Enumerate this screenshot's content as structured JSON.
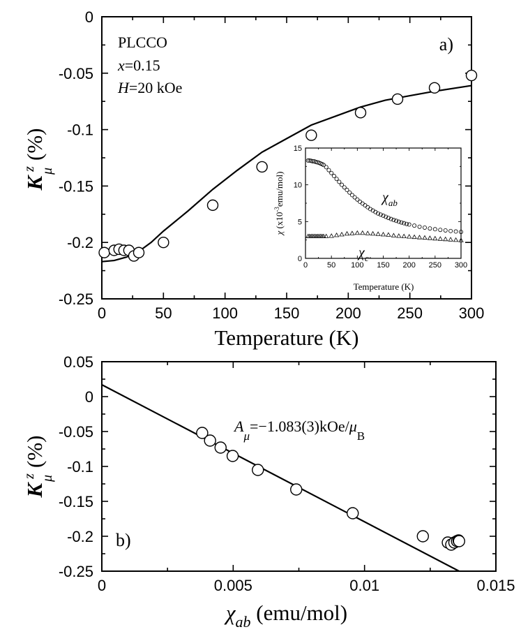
{
  "chart_data": [
    {
      "type": "scatter",
      "panel_label": "a)",
      "xlabel": "Temperature (K)",
      "ylabel": {
        "main": "K",
        "sup": "z",
        "sub": "μ",
        "unit": "(%)"
      },
      "xlim": [
        0,
        300
      ],
      "ylim": [
        -0.25,
        0
      ],
      "xticks": [
        0,
        50,
        100,
        150,
        200,
        250,
        300
      ],
      "yticks": [
        0,
        -0.05,
        -0.1,
        -0.15,
        -0.2,
        -0.25
      ],
      "xtick_labels": [
        "0",
        "50",
        "100",
        "150",
        "200",
        "250",
        "300"
      ],
      "ytick_labels": [
        "0",
        "-0.05",
        "-0.1",
        "-0.15",
        "-0.2",
        "-0.25"
      ],
      "annotation": {
        "line1": "PLCCO",
        "line2_var": "x",
        "line2_val": "=0.15",
        "line3_var": "H",
        "line3_val": "=20 kOe"
      },
      "series": [
        {
          "kind": "points",
          "x": [
            2,
            10,
            14,
            18,
            22,
            26,
            30,
            50,
            90,
            130,
            170,
            210,
            240,
            270,
            300
          ],
          "y": [
            -0.209,
            -0.207,
            -0.206,
            -0.207,
            -0.207,
            -0.212,
            -0.209,
            -0.2,
            -0.167,
            -0.133,
            -0.105,
            -0.085,
            -0.073,
            -0.063,
            -0.052
          ]
        },
        {
          "kind": "line",
          "x": [
            0,
            10,
            20,
            30,
            40,
            50,
            70,
            90,
            110,
            130,
            150,
            170,
            190,
            210,
            230,
            250,
            270,
            300
          ],
          "y": [
            -0.217,
            -0.216,
            -0.213,
            -0.208,
            -0.2,
            -0.19,
            -0.172,
            -0.153,
            -0.136,
            -0.12,
            -0.108,
            -0.096,
            -0.088,
            -0.08,
            -0.074,
            -0.07,
            -0.066,
            -0.061
          ]
        }
      ]
    },
    {
      "type": "scatter",
      "inset": true,
      "xlabel": "Temperature (K)",
      "ylabel": {
        "main": "χ",
        "rest": " (x10",
        "sup": "-3",
        "tail": "emu/mol)"
      },
      "xlim": [
        0,
        300
      ],
      "ylim": [
        0,
        15
      ],
      "xticks": [
        0,
        50,
        100,
        150,
        200,
        250,
        300
      ],
      "yticks": [
        0,
        5,
        10,
        15
      ],
      "xtick_labels": [
        "0",
        "50",
        "100",
        "150",
        "200",
        "250",
        "300"
      ],
      "ytick_labels": [
        "0",
        "5",
        "10",
        "15"
      ],
      "series": [
        {
          "name": {
            "main": "χ",
            "sub": "ab"
          },
          "marker": "circle",
          "x": [
            5,
            8,
            11,
            14,
            17,
            20,
            23,
            26,
            29,
            32,
            35,
            40,
            45,
            50,
            55,
            60,
            65,
            70,
            75,
            80,
            85,
            90,
            95,
            100,
            105,
            110,
            115,
            120,
            125,
            130,
            135,
            140,
            145,
            150,
            155,
            160,
            165,
            170,
            175,
            180,
            185,
            190,
            195,
            200,
            210,
            220,
            230,
            240,
            250,
            260,
            270,
            280,
            290,
            300
          ],
          "y": [
            13.3,
            13.3,
            13.25,
            13.2,
            13.2,
            13.1,
            13.05,
            13.0,
            12.9,
            12.8,
            12.7,
            12.4,
            12.0,
            11.6,
            11.2,
            10.8,
            10.4,
            10.0,
            9.65,
            9.3,
            8.95,
            8.6,
            8.3,
            8.0,
            7.7,
            7.45,
            7.2,
            6.95,
            6.7,
            6.5,
            6.3,
            6.1,
            5.95,
            5.8,
            5.65,
            5.5,
            5.35,
            5.22,
            5.1,
            4.98,
            4.88,
            4.78,
            4.68,
            4.6,
            4.45,
            4.3,
            4.18,
            4.06,
            3.96,
            3.87,
            3.8,
            3.72,
            3.65,
            3.6
          ]
        },
        {
          "name": {
            "main": "χ",
            "sub": "c"
          },
          "marker": "triangle",
          "x": [
            5,
            8,
            11,
            14,
            17,
            20,
            23,
            26,
            29,
            32,
            35,
            40,
            50,
            60,
            70,
            80,
            90,
            100,
            110,
            120,
            130,
            140,
            150,
            160,
            170,
            180,
            190,
            200,
            210,
            220,
            230,
            240,
            250,
            260,
            270,
            280,
            290,
            300
          ],
          "y": [
            3.0,
            3.0,
            3.0,
            3.0,
            3.0,
            3.0,
            3.0,
            3.0,
            3.0,
            3.0,
            3.0,
            3.0,
            3.05,
            3.15,
            3.25,
            3.35,
            3.4,
            3.45,
            3.45,
            3.4,
            3.35,
            3.3,
            3.25,
            3.2,
            3.1,
            3.05,
            3.0,
            2.95,
            2.9,
            2.85,
            2.8,
            2.75,
            2.7,
            2.65,
            2.6,
            2.55,
            2.5,
            2.45
          ]
        }
      ]
    },
    {
      "type": "scatter",
      "panel_label": "b)",
      "xlabel": {
        "main": "χ",
        "sub": "ab",
        "unit": " (emu/mol)"
      },
      "ylabel": {
        "main": "K",
        "sup": "z",
        "sub": "μ",
        "unit": "(%)"
      },
      "xlim": [
        0,
        0.015
      ],
      "ylim": [
        -0.25,
        0.05
      ],
      "xticks": [
        0,
        0.005,
        0.01,
        0.015
      ],
      "yticks": [
        0.05,
        0,
        -0.05,
        -0.1,
        -0.15,
        -0.2,
        -0.25
      ],
      "xtick_labels": [
        "0",
        "0.005",
        "0.01",
        "0.015"
      ],
      "ytick_labels": [
        "0.05",
        "0",
        "-0.05",
        "-0.1",
        "-0.15",
        "-0.2",
        "-0.25"
      ],
      "annotation": {
        "prefix": "A",
        "prefix_sub": "μ",
        "text": "=−1.083(3)kOe/",
        "unit_main": "μ",
        "unit_sub": "B"
      },
      "series": [
        {
          "kind": "points",
          "x": [
            0.00382,
            0.00412,
            0.00452,
            0.00498,
            0.00594,
            0.0074,
            0.00955,
            0.01222,
            0.01317,
            0.0133,
            0.01342,
            0.01352,
            0.01358,
            0.0136
          ],
          "y": [
            -0.052,
            -0.063,
            -0.073,
            -0.085,
            -0.105,
            -0.133,
            -0.167,
            -0.2,
            -0.209,
            -0.212,
            -0.209,
            -0.207,
            -0.206,
            -0.207
          ]
        },
        {
          "kind": "line",
          "x": [
            0,
            0.0136
          ],
          "y": [
            0.017,
            -0.25
          ]
        }
      ]
    }
  ]
}
